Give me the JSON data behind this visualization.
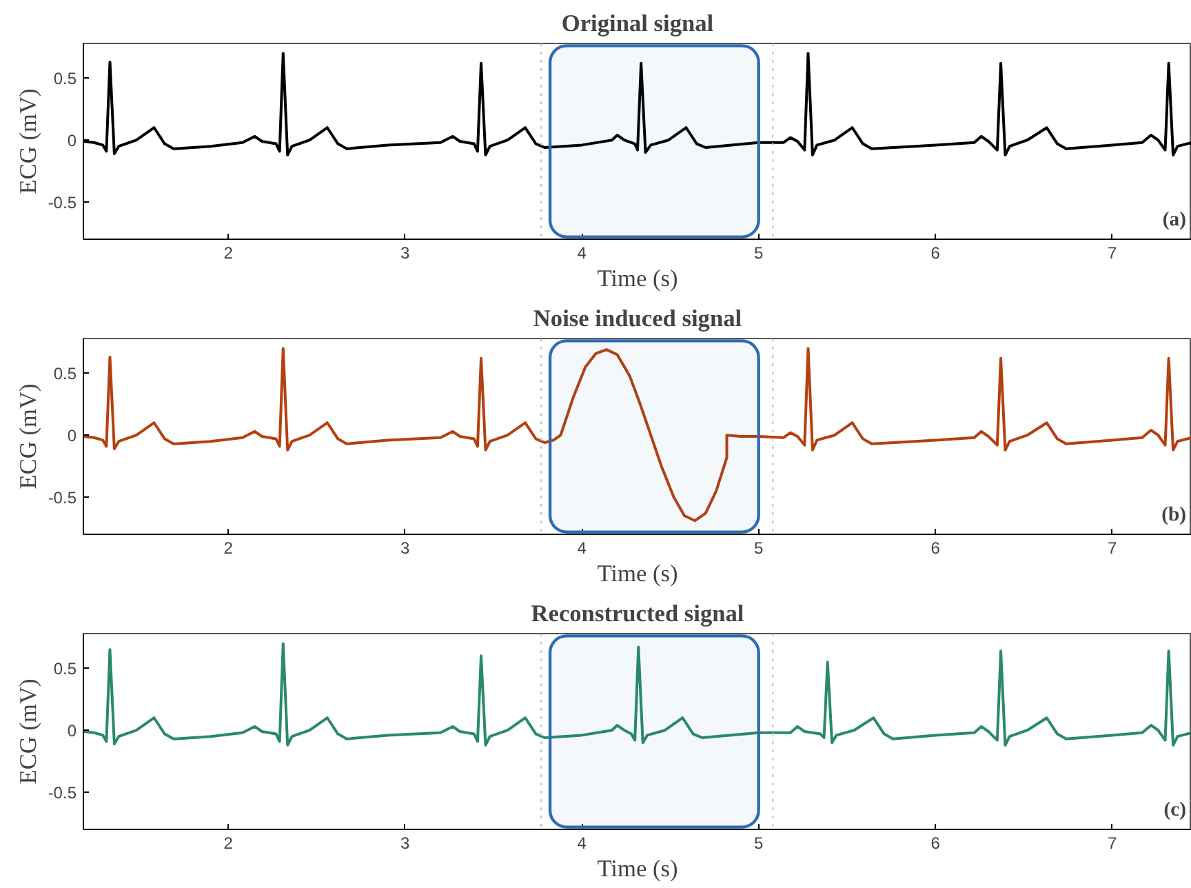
{
  "chart_data": [
    {
      "type": "line",
      "title": "Original signal",
      "xlabel": "Time (s)",
      "ylabel": "ECG (mV)",
      "annotations": [
        "(a)"
      ],
      "x": [
        1.18,
        1.24,
        1.29,
        1.31,
        1.33,
        1.355,
        1.38,
        1.48,
        1.58,
        1.64,
        1.69,
        1.9,
        2.08,
        2.15,
        2.19,
        2.27,
        2.29,
        2.31,
        2.335,
        2.36,
        2.46,
        2.56,
        2.62,
        2.67,
        2.9,
        3.2,
        3.27,
        3.31,
        3.39,
        3.41,
        3.43,
        3.455,
        3.48,
        3.58,
        3.68,
        3.74,
        3.79,
        4.0,
        4.17,
        4.2,
        4.24,
        4.3,
        4.315,
        4.335,
        4.36,
        4.39,
        4.49,
        4.59,
        4.65,
        4.7,
        5.0,
        5.14,
        5.18,
        5.22,
        5.26,
        5.28,
        5.305,
        5.33,
        5.43,
        5.53,
        5.59,
        5.64,
        6.0,
        6.22,
        6.26,
        6.3,
        6.35,
        6.37,
        6.395,
        6.42,
        6.52,
        6.63,
        6.69,
        6.74,
        7.0,
        7.17,
        7.22,
        7.26,
        7.3,
        7.32,
        7.345,
        7.37,
        7.45
      ],
      "series": [
        {
          "color": "#000000",
          "values": [
            -0.01,
            -0.02,
            -0.04,
            -0.09,
            0.63,
            -0.11,
            -0.05,
            0.0,
            0.1,
            -0.03,
            -0.07,
            -0.05,
            -0.02,
            0.03,
            -0.01,
            -0.03,
            -0.09,
            0.7,
            -0.12,
            -0.05,
            0.0,
            0.1,
            -0.03,
            -0.07,
            -0.04,
            -0.02,
            0.03,
            -0.01,
            -0.03,
            -0.09,
            0.62,
            -0.12,
            -0.05,
            0.0,
            0.1,
            -0.03,
            -0.06,
            -0.04,
            0.0,
            0.04,
            0.0,
            -0.03,
            -0.08,
            0.62,
            -0.1,
            -0.04,
            0.0,
            0.1,
            -0.03,
            -0.06,
            -0.02,
            -0.02,
            0.02,
            -0.01,
            -0.08,
            0.7,
            -0.12,
            -0.04,
            0.0,
            0.1,
            -0.03,
            -0.07,
            -0.04,
            -0.02,
            0.03,
            -0.01,
            -0.08,
            0.62,
            -0.12,
            -0.05,
            0.0,
            0.1,
            -0.03,
            -0.07,
            -0.04,
            -0.02,
            0.04,
            0.0,
            -0.08,
            0.62,
            -0.12,
            -0.05,
            -0.02
          ]
        }
      ],
      "xlim": [
        1.18,
        7.45
      ],
      "ylim": [
        -0.8,
        0.78
      ],
      "xticks": [
        2,
        3,
        4,
        5,
        6,
        7
      ],
      "yticks": [
        -0.5,
        0,
        0.5
      ],
      "bands": [
        {
          "axis": "x",
          "from": 3.82,
          "to": 5.0,
          "color": "#2e6db4"
        }
      ],
      "ref_lines": [
        {
          "axis": "x",
          "value": 3.77,
          "color": "#b8c0d0",
          "line_style": "dotted"
        },
        {
          "axis": "x",
          "value": 5.08,
          "color": "#b8c0d0",
          "line_style": "dotted"
        }
      ]
    },
    {
      "type": "line",
      "title": "Noise induced signal",
      "xlabel": "Time (s)",
      "ylabel": "ECG (mV)",
      "annotations": [
        "(b)"
      ],
      "x": [
        1.18,
        1.24,
        1.29,
        1.31,
        1.33,
        1.355,
        1.38,
        1.48,
        1.58,
        1.64,
        1.69,
        1.9,
        2.08,
        2.15,
        2.19,
        2.27,
        2.29,
        2.31,
        2.335,
        2.36,
        2.46,
        2.56,
        2.62,
        2.67,
        2.9,
        3.2,
        3.27,
        3.31,
        3.39,
        3.41,
        3.43,
        3.455,
        3.48,
        3.58,
        3.68,
        3.74,
        3.79,
        3.84,
        3.88,
        3.95,
        4.02,
        4.08,
        4.14,
        4.2,
        4.27,
        4.33,
        4.39,
        4.45,
        4.52,
        4.58,
        4.64,
        4.7,
        4.76,
        4.82,
        4.82,
        4.9,
        5.0,
        5.14,
        5.18,
        5.22,
        5.26,
        5.28,
        5.305,
        5.33,
        5.43,
        5.53,
        5.59,
        5.64,
        6.0,
        6.22,
        6.26,
        6.3,
        6.35,
        6.37,
        6.395,
        6.42,
        6.52,
        6.63,
        6.69,
        6.74,
        7.0,
        7.17,
        7.22,
        7.26,
        7.3,
        7.32,
        7.345,
        7.37,
        7.45
      ],
      "series": [
        {
          "color": "#b5400f",
          "values": [
            -0.01,
            -0.02,
            -0.04,
            -0.09,
            0.63,
            -0.11,
            -0.05,
            0.0,
            0.1,
            -0.03,
            -0.07,
            -0.05,
            -0.02,
            0.03,
            -0.01,
            -0.03,
            -0.09,
            0.7,
            -0.12,
            -0.05,
            0.0,
            0.1,
            -0.03,
            -0.07,
            -0.04,
            -0.02,
            0.03,
            -0.01,
            -0.03,
            -0.09,
            0.62,
            -0.12,
            -0.05,
            0.0,
            0.1,
            -0.03,
            -0.06,
            -0.04,
            0.0,
            0.3,
            0.55,
            0.66,
            0.69,
            0.65,
            0.48,
            0.25,
            0.0,
            -0.25,
            -0.5,
            -0.65,
            -0.69,
            -0.63,
            -0.45,
            -0.18,
            0.0,
            -0.01,
            -0.01,
            -0.02,
            0.02,
            -0.01,
            -0.08,
            0.7,
            -0.12,
            -0.04,
            0.0,
            0.1,
            -0.03,
            -0.07,
            -0.04,
            -0.02,
            0.03,
            -0.01,
            -0.08,
            0.62,
            -0.12,
            -0.05,
            0.0,
            0.1,
            -0.03,
            -0.07,
            -0.04,
            -0.02,
            0.04,
            0.0,
            -0.08,
            0.62,
            -0.12,
            -0.05,
            -0.02
          ]
        }
      ],
      "xlim": [
        1.18,
        7.45
      ],
      "ylim": [
        -0.8,
        0.78
      ],
      "xticks": [
        2,
        3,
        4,
        5,
        6,
        7
      ],
      "yticks": [
        -0.5,
        0,
        0.5
      ],
      "bands": [
        {
          "axis": "x",
          "from": 3.82,
          "to": 5.0,
          "color": "#2e6db4"
        }
      ],
      "ref_lines": [
        {
          "axis": "x",
          "value": 3.77,
          "color": "#b8c0d0",
          "line_style": "dotted"
        },
        {
          "axis": "x",
          "value": 5.08,
          "color": "#b8c0d0",
          "line_style": "dotted"
        }
      ]
    },
    {
      "type": "line",
      "title": "Reconstructed signal",
      "xlabel": "Time (s)",
      "ylabel": "ECG (mV)",
      "annotations": [
        "(c)"
      ],
      "x": [
        1.18,
        1.24,
        1.29,
        1.31,
        1.33,
        1.355,
        1.38,
        1.48,
        1.58,
        1.64,
        1.69,
        1.9,
        2.08,
        2.15,
        2.19,
        2.27,
        2.29,
        2.31,
        2.335,
        2.36,
        2.46,
        2.56,
        2.62,
        2.67,
        2.9,
        3.2,
        3.27,
        3.31,
        3.39,
        3.41,
        3.43,
        3.455,
        3.48,
        3.58,
        3.68,
        3.74,
        3.79,
        4.0,
        4.17,
        4.2,
        4.24,
        4.28,
        4.3,
        4.32,
        4.345,
        4.37,
        4.47,
        4.57,
        4.63,
        4.68,
        5.0,
        5.18,
        5.22,
        5.26,
        5.35,
        5.37,
        5.39,
        5.415,
        5.44,
        5.54,
        5.65,
        5.71,
        5.76,
        6.0,
        6.22,
        6.26,
        6.3,
        6.35,
        6.37,
        6.395,
        6.42,
        6.52,
        6.63,
        6.69,
        6.74,
        7.0,
        7.17,
        7.22,
        7.26,
        7.3,
        7.32,
        7.345,
        7.37,
        7.45
      ],
      "series": [
        {
          "color": "#2a8a68",
          "values": [
            -0.01,
            -0.02,
            -0.04,
            -0.09,
            0.65,
            -0.11,
            -0.05,
            0.0,
            0.1,
            -0.03,
            -0.07,
            -0.05,
            -0.02,
            0.03,
            -0.01,
            -0.03,
            -0.09,
            0.7,
            -0.12,
            -0.05,
            0.0,
            0.1,
            -0.03,
            -0.07,
            -0.04,
            -0.02,
            0.03,
            -0.01,
            -0.03,
            -0.09,
            0.6,
            -0.12,
            -0.05,
            0.0,
            0.1,
            -0.03,
            -0.06,
            -0.04,
            0.0,
            0.04,
            0.0,
            -0.03,
            -0.08,
            0.67,
            -0.1,
            -0.04,
            0.0,
            0.1,
            -0.03,
            -0.06,
            -0.02,
            -0.02,
            0.03,
            -0.01,
            -0.03,
            -0.06,
            0.55,
            -0.1,
            -0.04,
            0.0,
            0.1,
            -0.03,
            -0.07,
            -0.04,
            -0.02,
            0.03,
            -0.01,
            -0.08,
            0.64,
            -0.12,
            -0.05,
            0.0,
            0.1,
            -0.03,
            -0.07,
            -0.04,
            -0.02,
            0.04,
            0.0,
            -0.08,
            0.64,
            -0.12,
            -0.05,
            -0.02
          ]
        }
      ],
      "xlim": [
        1.18,
        7.45
      ],
      "ylim": [
        -0.8,
        0.78
      ],
      "xticks": [
        2,
        3,
        4,
        5,
        6,
        7
      ],
      "yticks": [
        -0.5,
        0,
        0.5
      ],
      "bands": [
        {
          "axis": "x",
          "from": 3.82,
          "to": 5.0,
          "color": "#2e6db4"
        }
      ],
      "ref_lines": [
        {
          "axis": "x",
          "value": 3.77,
          "color": "#b8c0d0",
          "line_style": "dotted"
        },
        {
          "axis": "x",
          "value": 5.08,
          "color": "#b8c0d0",
          "line_style": "dotted"
        }
      ]
    }
  ]
}
